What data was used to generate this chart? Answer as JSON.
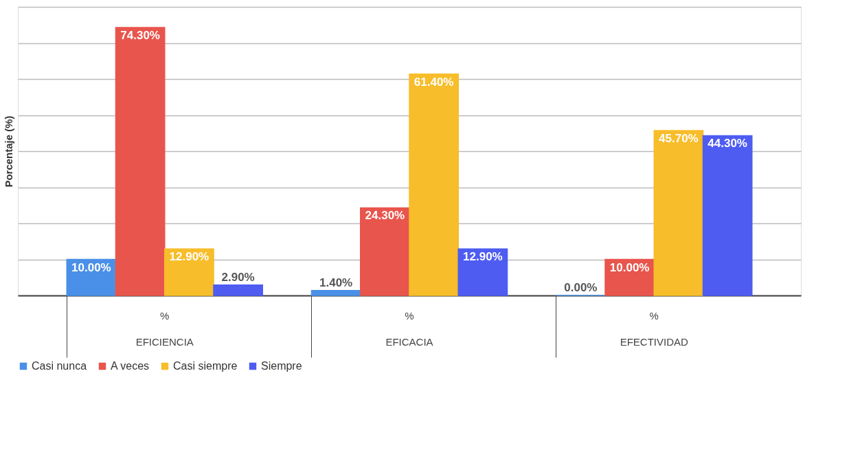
{
  "chart_data": {
    "type": "bar",
    "ylabel": "Porcentaje (%)",
    "categories": [
      "EFICIENCIA",
      "EFICACIA",
      "EFECTIVIDAD"
    ],
    "annotations": [
      "%",
      "%",
      "%"
    ],
    "series": [
      {
        "name": "Casi nunca",
        "color": "#4a90e8",
        "values": [
          10.0,
          1.4,
          0.0
        ],
        "value_labels": [
          "10.00%",
          "1.40%",
          "0.00%"
        ]
      },
      {
        "name": "A veces",
        "color": "#e8554c",
        "values": [
          74.3,
          24.3,
          10.0
        ],
        "value_labels": [
          "74.30%",
          "24.30%",
          "10.00%"
        ]
      },
      {
        "name": "Casi siempre",
        "color": "#f7bd2a",
        "values": [
          12.9,
          61.4,
          45.7
        ],
        "value_labels": [
          "12.90%",
          "61.40%",
          "45.70%"
        ]
      },
      {
        "name": "Siempre",
        "color": "#4e5cf2",
        "values": [
          2.9,
          12.9,
          44.3
        ],
        "value_labels": [
          "2.90%",
          "12.90%",
          "44.30%"
        ]
      }
    ],
    "ylim": [
      0,
      80
    ],
    "yticks": [
      {
        "value": 0,
        "label": null
      },
      {
        "value": 10,
        "label": null
      },
      {
        "value": 20,
        "label": null
      },
      {
        "value": 30,
        "label": null
      },
      {
        "value": 40,
        "label": null
      },
      {
        "value": 50,
        "label": null
      },
      {
        "value": 60,
        "label": null
      },
      {
        "value": 70,
        "label": null
      },
      {
        "value": 80,
        "label": null
      }
    ],
    "grid": "y",
    "legend": "bottom"
  }
}
